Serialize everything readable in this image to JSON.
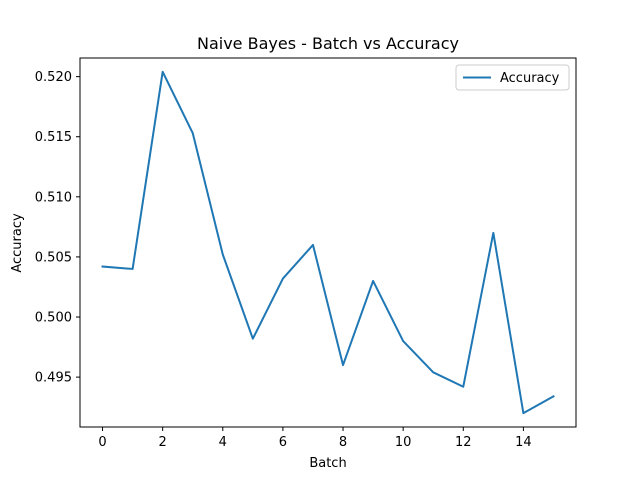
{
  "chart_data": {
    "type": "line",
    "title": "Naive Bayes - Batch vs Accuracy",
    "xlabel": "Batch",
    "ylabel": "Accuracy",
    "xlim": [
      -0.75,
      15.75
    ],
    "ylim": [
      0.49085,
      0.52155
    ],
    "x_ticks": [
      0,
      2,
      4,
      6,
      8,
      10,
      12,
      14
    ],
    "y_ticks": [
      0.495,
      0.5,
      0.505,
      0.51,
      0.515,
      0.52
    ],
    "x_tick_labels": [
      "0",
      "2",
      "4",
      "6",
      "8",
      "10",
      "12",
      "14"
    ],
    "y_tick_labels": [
      "0.495",
      "0.500",
      "0.505",
      "0.510",
      "0.515",
      "0.520"
    ],
    "grid": false,
    "legend_position": "top-right",
    "series": [
      {
        "name": "Accuracy",
        "color": "#1f77b4",
        "x": [
          0,
          1,
          2,
          3,
          4,
          5,
          6,
          7,
          8,
          9,
          10,
          11,
          12,
          13,
          14,
          15
        ],
        "values": [
          0.5042,
          0.504,
          0.5204,
          0.5153,
          0.5052,
          0.4982,
          0.5032,
          0.506,
          0.496,
          0.503,
          0.498,
          0.4954,
          0.4942,
          0.507,
          0.492,
          0.4934
        ]
      }
    ]
  }
}
